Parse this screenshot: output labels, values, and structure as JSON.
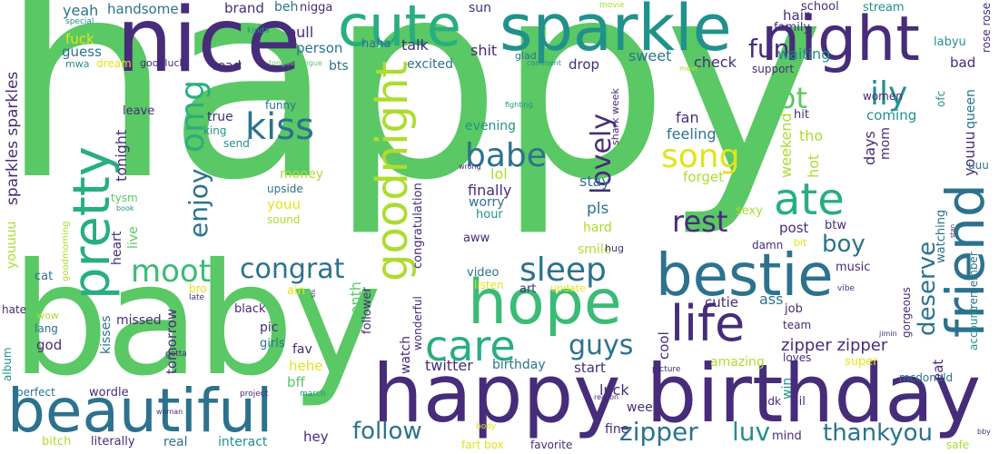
{
  "palette": {
    "green": "#5ac864",
    "purple": "#472c7a",
    "teal": "#2c728e",
    "cyan": "#21918c",
    "seagreen": "#28ae80",
    "lime": "#addc30",
    "yellow": "#e2e418",
    "mint": "#3bbb75"
  },
  "words": {
    "happy": "happy",
    "baby": "baby",
    "nice": "nice",
    "sparkle": "sparkle",
    "cute": "cute",
    "night": "night",
    "happy_birthday": "happy birthday",
    "beautiful": "beautiful",
    "bestie": "bestie",
    "hope": "hope",
    "pretty": "pretty",
    "friend": "friend",
    "goodnight": "goodnight",
    "life": "life",
    "care": "care",
    "omg": "omg",
    "kiss": "kiss",
    "babe": "babe",
    "ate": "ate",
    "enjoy": "enjoy",
    "moot": "moot",
    "congrat": "congrat",
    "sleep": "sleep",
    "song": "song",
    "lovely": "lovely",
    "rest": "rest",
    "ily": "ily",
    "fun": "fun",
    "lot": "lot",
    "guys": "guys",
    "boy": "boy",
    "deserve": "deserve",
    "follow": "follow",
    "zipper": "zipper",
    "zipper_zipper": "zipper zipper",
    "thankyou": "thankyou",
    "luv": "luv",
    "sparkles_sparkles": "sparkles sparkles",
    "youuuu": "youuuu",
    "youuu": "youuu",
    "yeah": "yeah",
    "handsome": "handsome",
    "brand": "brand",
    "beh": "beh",
    "nigga": "nigga",
    "sun": "sun",
    "movie": "movie",
    "hair": "hair",
    "school": "school",
    "stream": "stream",
    "rose_rose": "rose rose",
    "special": "special",
    "fuck": "fuck",
    "guess": "guess",
    "mwa": "mwa",
    "dream": "dream",
    "goodluck": "goodluck",
    "pull": "pull",
    "person": "person",
    "haha": "haha",
    "talk": "talk",
    "shit": "shit",
    "glad": "glad",
    "kinda": "kinda",
    "family": "family",
    "labyu": "labyu",
    "waiting": "waiting",
    "bad": "bad",
    "sweet": "sweet",
    "check": "check",
    "support": "support",
    "meet": "meet",
    "read": "read",
    "bts": "bts",
    "tongue_tongue": "tongue tongue",
    "excited": "excited",
    "drop": "drop",
    "comment": "comment",
    "fighting": "fighting",
    "shark_week": "shark week",
    "hit": "hit",
    "women": "women",
    "ofc": "ofc",
    "queen": "queen",
    "coming": "coming",
    "tho": "tho",
    "fan": "fan",
    "feeling": "feeling",
    "days": "days",
    "mom": "mom",
    "uuu": "uuu",
    "weekend": "weekend",
    "hot": "hot",
    "forget": "forget",
    "evening": "evening",
    "lol": "lol",
    "finally": "finally",
    "worry": "worry",
    "hour": "hour",
    "stay": "stay",
    "pls": "pls",
    "hard": "hard",
    "sexy": "sexy",
    "post": "post",
    "btw": "btw",
    "watching": "watching",
    "remember": "remember",
    "stan": "stan",
    "funny": "funny",
    "leave": "leave",
    "true": "true",
    "king": "king",
    "send": "send",
    "tonight": "tonight",
    "money": "money",
    "upside": "upside",
    "youu": "youu",
    "sound": "sound",
    "congratulation": "congratulation",
    "wrong": "wrong",
    "tysm": "tysm",
    "book": "book",
    "goodmorning": "goodmorning",
    "heart": "heart",
    "live": "live",
    "cat": "cat",
    "hate": "hate",
    "wow": "wow",
    "lang": "lang",
    "god": "god",
    "late": "late",
    "bro": "bro",
    "black": "black",
    "ain": "ain",
    "sis": "sis",
    "follower": "follower",
    "kisses": "kisses",
    "missed": "missed",
    "tomorrow": "tomorrow",
    "pic": "pic",
    "girls": "girls",
    "month": "month",
    "aww": "aww",
    "video": "video",
    "listen": "listen",
    "art": "art",
    "update": "update",
    "smile": "smile",
    "hug": "hug",
    "damn": "damn",
    "bit": "bit",
    "music": "music",
    "vibe": "vibe",
    "cutie": "cutie",
    "ass": "ass",
    "job": "job",
    "team": "team",
    "account": "account",
    "gorgeous": "gorgeous",
    "jimin": "jimin",
    "watch": "watch",
    "wonderful": "wonderful",
    "fav": "fav",
    "hehe": "hehe",
    "bff": "bff",
    "amazing": "amazing",
    "cool": "cool",
    "super": "super",
    "loves": "loves",
    "mcdonald": "mcdonald",
    "album": "album",
    "perfect": "perfect",
    "wordle": "wordle",
    "gotta": "gotta",
    "twitter": "twitter",
    "birthday": "birthday",
    "start": "start",
    "picture": "picture",
    "eat": "eat",
    "luck": "luck",
    "week": "week",
    "reason": "reason",
    "idk": "idk",
    "win": "win",
    "lil": "lil",
    "woman": "woman",
    "project": "project",
    "march": "march",
    "fine": "fine",
    "mind": "mind",
    "bitch": "bitch",
    "literally": "literally",
    "real": "real",
    "interact": "interact",
    "hey": "hey",
    "body": "body",
    "fart_box": "fart box",
    "favorite": "favorite",
    "safe": "safe",
    "bby": "bby"
  }
}
